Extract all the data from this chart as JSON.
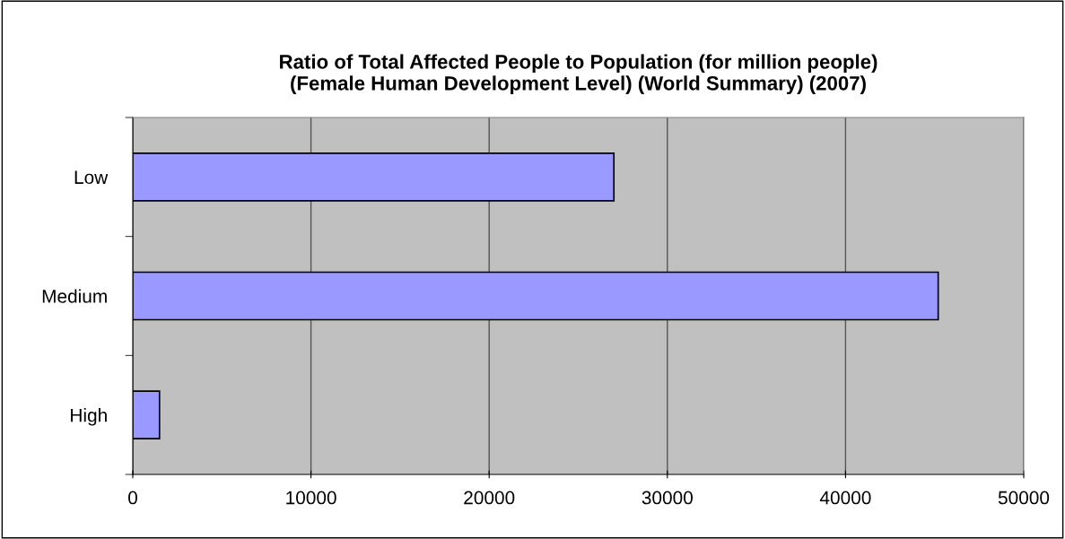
{
  "chart_data": {
    "type": "bar",
    "orientation": "horizontal",
    "title": "Ratio of Total Affected People to Population (for million people)\n(Female Human Development Level) (World Summary) (2007)",
    "categories": [
      "Low",
      "Medium",
      "High"
    ],
    "values": [
      27000,
      45200,
      1500
    ],
    "color": "#9999ff",
    "xlim": [
      0,
      50000
    ],
    "xticks": [
      0,
      10000,
      20000,
      30000,
      40000,
      50000
    ],
    "grid": "x"
  }
}
